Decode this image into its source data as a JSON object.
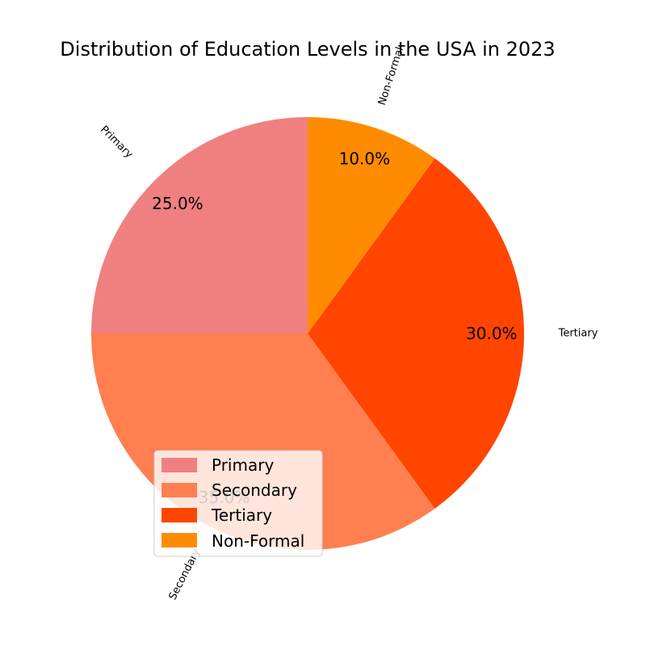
{
  "chart_data": {
    "type": "pie",
    "title": "Distribution of Education Levels in the USA in 2023",
    "categories": [
      "Primary",
      "Secondary",
      "Tertiary",
      "Non-Formal"
    ],
    "values": [
      25,
      35,
      30,
      10
    ],
    "percent_labels": [
      "25.0%",
      "35.0%",
      "30.0%",
      "10.0%"
    ],
    "colors": [
      "#f08080",
      "#ff7f50",
      "#ff4500",
      "#ff8c00"
    ],
    "start_angle_deg": 90,
    "direction": "counterclockwise",
    "legend_position": "lower-left",
    "legend": {
      "entries": [
        "Primary",
        "Secondary",
        "Tertiary",
        "Non-Formal"
      ]
    }
  }
}
